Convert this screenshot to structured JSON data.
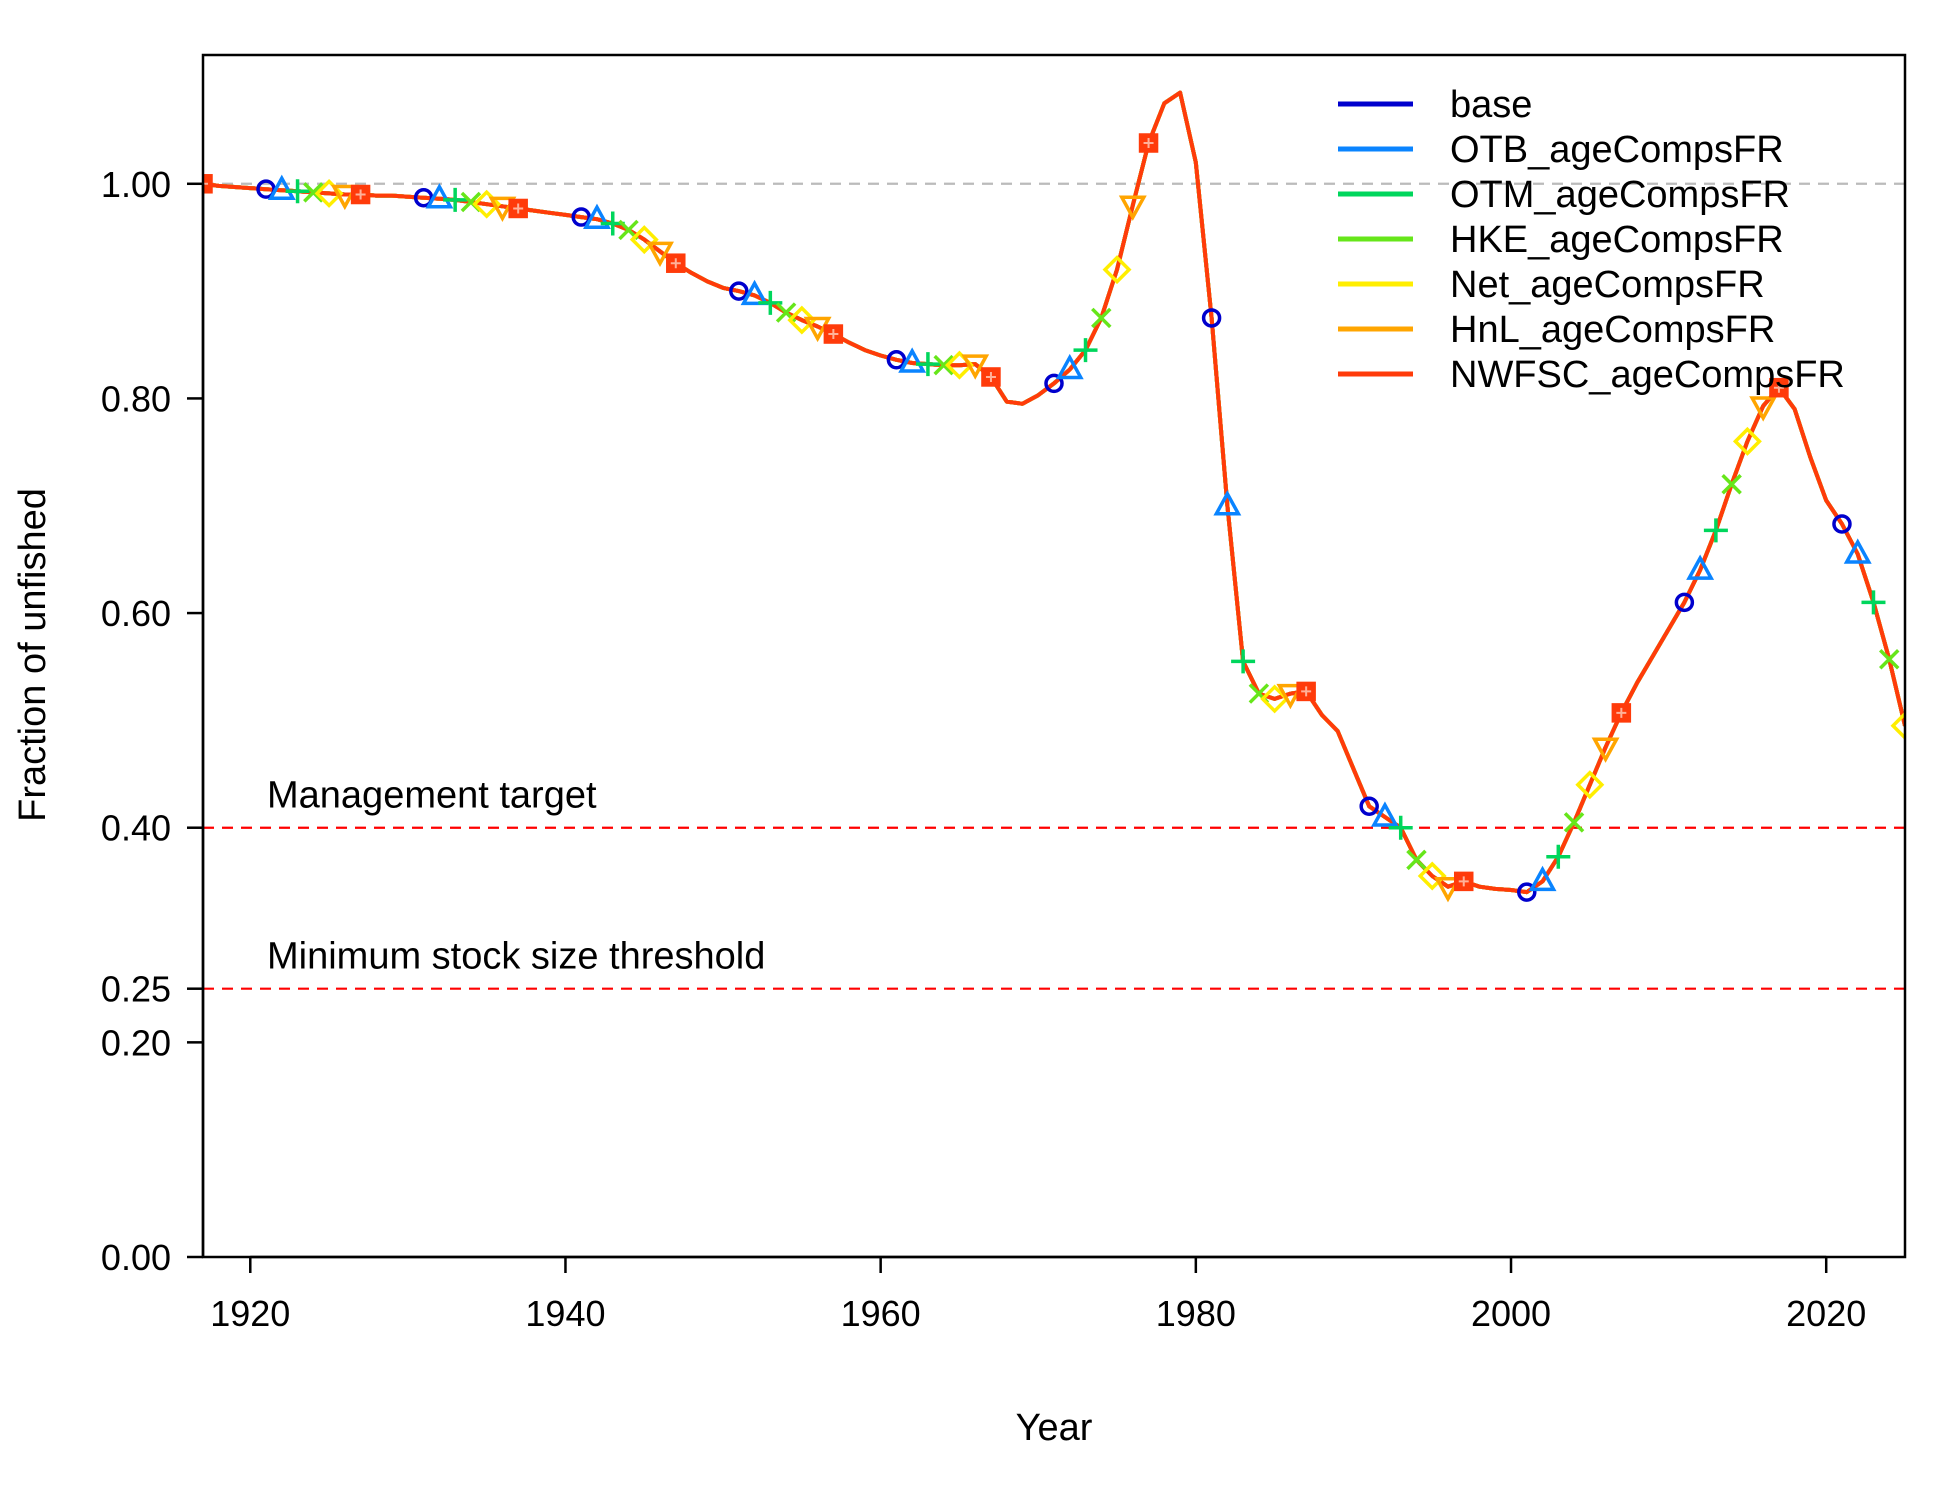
{
  "chart_data": {
    "type": "line",
    "xlabel": "Year",
    "ylabel": "Fraction of unfished",
    "xlim": [
      1917,
      2025
    ],
    "ylim": [
      0,
      1.12
    ],
    "x_ticks": [
      1920,
      1940,
      1960,
      1980,
      2000,
      2020
    ],
    "x_tick_labels": [
      "1920",
      "1940",
      "1960",
      "1980",
      "2000",
      "2020"
    ],
    "y_ticks": [
      0.0,
      0.2,
      0.25,
      0.4,
      0.6,
      0.8,
      1.0
    ],
    "y_tick_labels": [
      "0.00",
      "0.20",
      "0.25",
      "0.40",
      "0.60",
      "0.80",
      "1.00"
    ],
    "grid": false,
    "legend_position": "top-right",
    "reference_lines": [
      {
        "y": 1.0,
        "label": "",
        "color": "#bbbbbb"
      },
      {
        "y": 0.4,
        "label": "Management target",
        "color": "#ff0000"
      },
      {
        "y": 0.25,
        "label": "Minimum stock size threshold",
        "color": "#ff0000"
      }
    ],
    "x": [
      1917,
      1918,
      1919,
      1920,
      1921,
      1922,
      1923,
      1924,
      1925,
      1926,
      1927,
      1928,
      1929,
      1930,
      1931,
      1932,
      1933,
      1934,
      1935,
      1936,
      1937,
      1938,
      1939,
      1940,
      1941,
      1942,
      1943,
      1944,
      1945,
      1946,
      1947,
      1948,
      1949,
      1950,
      1951,
      1952,
      1953,
      1954,
      1955,
      1956,
      1957,
      1958,
      1959,
      1960,
      1961,
      1962,
      1963,
      1964,
      1965,
      1966,
      1967,
      1968,
      1969,
      1970,
      1971,
      1972,
      1973,
      1974,
      1975,
      1976,
      1977,
      1978,
      1979,
      1980,
      1981,
      1982,
      1983,
      1984,
      1985,
      1986,
      1987,
      1988,
      1989,
      1990,
      1991,
      1992,
      1993,
      1994,
      1995,
      1996,
      1997,
      1998,
      1999,
      2000,
      2001,
      2002,
      2003,
      2004,
      2005,
      2006,
      2007,
      2008,
      2009,
      2010,
      2011,
      2012,
      2013,
      2014,
      2015,
      2016,
      2017,
      2018,
      2019,
      2020,
      2021,
      2022,
      2023,
      2024,
      2025
    ],
    "series": [
      {
        "name": "base",
        "color": "#0000cd",
        "marker": "circle",
        "marker_offset": 4,
        "values": [
          1.0,
          0.998,
          0.997,
          0.996,
          0.995,
          0.994,
          0.993,
          0.992,
          0.991,
          0.99,
          0.99,
          0.989,
          0.989,
          0.988,
          0.987,
          0.986,
          0.985,
          0.983,
          0.981,
          0.979,
          0.977,
          0.975,
          0.973,
          0.971,
          0.969,
          0.967,
          0.963,
          0.957,
          0.948,
          0.937,
          0.926,
          0.917,
          0.909,
          0.903,
          0.9,
          0.896,
          0.889,
          0.88,
          0.873,
          0.867,
          0.86,
          0.852,
          0.845,
          0.84,
          0.836,
          0.833,
          0.832,
          0.831,
          0.831,
          0.832,
          0.82,
          0.797,
          0.795,
          0.803,
          0.814,
          0.827,
          0.845,
          0.875,
          0.92,
          0.98,
          1.038,
          1.075,
          1.085,
          1.02,
          0.875,
          0.7,
          0.555,
          0.525,
          0.52,
          0.525,
          0.527,
          0.505,
          0.49,
          0.455,
          0.42,
          0.41,
          0.4,
          0.37,
          0.355,
          0.345,
          0.35,
          0.345,
          0.343,
          0.342,
          0.34,
          0.35,
          0.373,
          0.405,
          0.44,
          0.475,
          0.507,
          0.535,
          0.56,
          0.585,
          0.61,
          0.64,
          0.677,
          0.72,
          0.76,
          0.793,
          0.81,
          0.79,
          0.745,
          0.705,
          0.683,
          0.655,
          0.61,
          0.557,
          0.495
        ]
      },
      {
        "name": "OTB_ageCompsFR",
        "color": "#0a84ff",
        "marker": "triangle-up",
        "marker_offset": 5,
        "values": [
          1.0,
          0.998,
          0.997,
          0.996,
          0.995,
          0.994,
          0.993,
          0.992,
          0.991,
          0.99,
          0.99,
          0.989,
          0.989,
          0.988,
          0.987,
          0.986,
          0.985,
          0.983,
          0.981,
          0.979,
          0.977,
          0.975,
          0.973,
          0.971,
          0.969,
          0.967,
          0.963,
          0.957,
          0.948,
          0.937,
          0.926,
          0.917,
          0.909,
          0.903,
          0.9,
          0.896,
          0.889,
          0.88,
          0.873,
          0.867,
          0.86,
          0.852,
          0.845,
          0.84,
          0.836,
          0.833,
          0.832,
          0.831,
          0.831,
          0.832,
          0.82,
          0.797,
          0.795,
          0.803,
          0.814,
          0.827,
          0.845,
          0.875,
          0.92,
          0.98,
          1.038,
          1.075,
          1.085,
          1.02,
          0.875,
          0.7,
          0.555,
          0.525,
          0.52,
          0.525,
          0.527,
          0.505,
          0.49,
          0.455,
          0.42,
          0.41,
          0.4,
          0.37,
          0.355,
          0.345,
          0.35,
          0.345,
          0.343,
          0.342,
          0.34,
          0.35,
          0.373,
          0.405,
          0.44,
          0.475,
          0.507,
          0.535,
          0.56,
          0.585,
          0.61,
          0.64,
          0.677,
          0.72,
          0.76,
          0.793,
          0.81,
          0.79,
          0.745,
          0.705,
          0.683,
          0.655,
          0.61,
          0.557,
          0.495
        ]
      },
      {
        "name": "OTM_ageCompsFR",
        "color": "#00d65c",
        "marker": "plus",
        "marker_offset": 6,
        "values": [
          1.0,
          0.998,
          0.997,
          0.996,
          0.995,
          0.994,
          0.993,
          0.992,
          0.991,
          0.99,
          0.99,
          0.989,
          0.989,
          0.988,
          0.987,
          0.986,
          0.985,
          0.983,
          0.981,
          0.979,
          0.977,
          0.975,
          0.973,
          0.971,
          0.969,
          0.967,
          0.963,
          0.957,
          0.948,
          0.937,
          0.926,
          0.917,
          0.909,
          0.903,
          0.9,
          0.896,
          0.889,
          0.88,
          0.873,
          0.867,
          0.86,
          0.852,
          0.845,
          0.84,
          0.836,
          0.833,
          0.832,
          0.831,
          0.831,
          0.832,
          0.82,
          0.797,
          0.795,
          0.803,
          0.814,
          0.827,
          0.845,
          0.875,
          0.92,
          0.98,
          1.038,
          1.075,
          1.085,
          1.02,
          0.875,
          0.7,
          0.555,
          0.525,
          0.52,
          0.525,
          0.527,
          0.505,
          0.49,
          0.455,
          0.42,
          0.41,
          0.4,
          0.37,
          0.355,
          0.345,
          0.35,
          0.345,
          0.343,
          0.342,
          0.34,
          0.35,
          0.373,
          0.405,
          0.44,
          0.475,
          0.507,
          0.535,
          0.56,
          0.585,
          0.61,
          0.64,
          0.677,
          0.72,
          0.76,
          0.793,
          0.81,
          0.79,
          0.745,
          0.705,
          0.683,
          0.655,
          0.61,
          0.557,
          0.495
        ]
      },
      {
        "name": "HKE_ageCompsFR",
        "color": "#66e61a",
        "marker": "cross",
        "marker_offset": 7,
        "values": [
          1.0,
          0.998,
          0.997,
          0.996,
          0.995,
          0.994,
          0.993,
          0.992,
          0.991,
          0.99,
          0.99,
          0.989,
          0.989,
          0.988,
          0.987,
          0.986,
          0.985,
          0.983,
          0.981,
          0.979,
          0.977,
          0.975,
          0.973,
          0.971,
          0.969,
          0.967,
          0.963,
          0.957,
          0.948,
          0.937,
          0.926,
          0.917,
          0.909,
          0.903,
          0.9,
          0.896,
          0.889,
          0.88,
          0.873,
          0.867,
          0.86,
          0.852,
          0.845,
          0.84,
          0.836,
          0.833,
          0.832,
          0.831,
          0.831,
          0.832,
          0.82,
          0.797,
          0.795,
          0.803,
          0.814,
          0.827,
          0.845,
          0.875,
          0.92,
          0.98,
          1.038,
          1.075,
          1.085,
          1.02,
          0.875,
          0.7,
          0.555,
          0.525,
          0.52,
          0.525,
          0.527,
          0.505,
          0.49,
          0.455,
          0.42,
          0.41,
          0.4,
          0.37,
          0.355,
          0.345,
          0.35,
          0.345,
          0.343,
          0.342,
          0.34,
          0.35,
          0.373,
          0.405,
          0.44,
          0.475,
          0.507,
          0.535,
          0.56,
          0.585,
          0.61,
          0.64,
          0.677,
          0.72,
          0.76,
          0.793,
          0.81,
          0.79,
          0.745,
          0.705,
          0.683,
          0.655,
          0.61,
          0.557,
          0.495
        ]
      },
      {
        "name": "Net_ageCompsFR",
        "color": "#ffee00",
        "marker": "diamond",
        "marker_offset": 8,
        "values": [
          1.0,
          0.998,
          0.997,
          0.996,
          0.995,
          0.994,
          0.993,
          0.992,
          0.991,
          0.99,
          0.99,
          0.989,
          0.989,
          0.988,
          0.987,
          0.986,
          0.985,
          0.983,
          0.981,
          0.979,
          0.977,
          0.975,
          0.973,
          0.971,
          0.969,
          0.967,
          0.963,
          0.957,
          0.948,
          0.937,
          0.926,
          0.917,
          0.909,
          0.903,
          0.9,
          0.896,
          0.889,
          0.88,
          0.873,
          0.867,
          0.86,
          0.852,
          0.845,
          0.84,
          0.836,
          0.833,
          0.832,
          0.831,
          0.831,
          0.832,
          0.82,
          0.797,
          0.795,
          0.803,
          0.814,
          0.827,
          0.845,
          0.875,
          0.92,
          0.98,
          1.038,
          1.075,
          1.085,
          1.02,
          0.875,
          0.7,
          0.555,
          0.525,
          0.52,
          0.525,
          0.527,
          0.505,
          0.49,
          0.455,
          0.42,
          0.41,
          0.4,
          0.37,
          0.355,
          0.345,
          0.35,
          0.345,
          0.343,
          0.342,
          0.34,
          0.35,
          0.373,
          0.405,
          0.44,
          0.475,
          0.507,
          0.535,
          0.56,
          0.585,
          0.61,
          0.64,
          0.677,
          0.72,
          0.76,
          0.793,
          0.81,
          0.79,
          0.745,
          0.705,
          0.683,
          0.655,
          0.61,
          0.557,
          0.495
        ]
      },
      {
        "name": "HnL_ageCompsFR",
        "color": "#ffa500",
        "marker": "triangle-down",
        "marker_offset": 9,
        "values": [
          1.0,
          0.998,
          0.997,
          0.996,
          0.995,
          0.994,
          0.993,
          0.992,
          0.991,
          0.99,
          0.99,
          0.989,
          0.989,
          0.988,
          0.987,
          0.986,
          0.985,
          0.983,
          0.981,
          0.979,
          0.977,
          0.975,
          0.973,
          0.971,
          0.969,
          0.967,
          0.963,
          0.957,
          0.948,
          0.937,
          0.926,
          0.917,
          0.909,
          0.903,
          0.9,
          0.896,
          0.889,
          0.88,
          0.873,
          0.867,
          0.86,
          0.852,
          0.845,
          0.84,
          0.836,
          0.833,
          0.832,
          0.831,
          0.831,
          0.832,
          0.82,
          0.797,
          0.795,
          0.803,
          0.814,
          0.827,
          0.845,
          0.875,
          0.92,
          0.98,
          1.038,
          1.075,
          1.085,
          1.02,
          0.875,
          0.7,
          0.555,
          0.525,
          0.52,
          0.525,
          0.527,
          0.505,
          0.49,
          0.455,
          0.42,
          0.41,
          0.4,
          0.37,
          0.355,
          0.345,
          0.35,
          0.345,
          0.343,
          0.342,
          0.34,
          0.35,
          0.373,
          0.405,
          0.44,
          0.475,
          0.507,
          0.535,
          0.56,
          0.585,
          0.61,
          0.64,
          0.677,
          0.72,
          0.76,
          0.793,
          0.81,
          0.79,
          0.745,
          0.705,
          0.683,
          0.655,
          0.61,
          0.557,
          0.495
        ]
      },
      {
        "name": "NWFSC_ageCompsFR",
        "color": "#ff3b0a",
        "marker": "square-cross",
        "marker_offset": 10,
        "values": [
          1.0,
          0.998,
          0.997,
          0.996,
          0.995,
          0.994,
          0.993,
          0.992,
          0.991,
          0.99,
          0.99,
          0.989,
          0.989,
          0.988,
          0.987,
          0.986,
          0.985,
          0.983,
          0.981,
          0.979,
          0.977,
          0.975,
          0.973,
          0.971,
          0.969,
          0.967,
          0.963,
          0.957,
          0.948,
          0.937,
          0.926,
          0.917,
          0.909,
          0.903,
          0.9,
          0.896,
          0.889,
          0.88,
          0.873,
          0.867,
          0.86,
          0.852,
          0.845,
          0.84,
          0.836,
          0.833,
          0.832,
          0.831,
          0.831,
          0.832,
          0.82,
          0.797,
          0.795,
          0.803,
          0.814,
          0.827,
          0.845,
          0.875,
          0.92,
          0.98,
          1.038,
          1.075,
          1.085,
          1.02,
          0.875,
          0.7,
          0.555,
          0.525,
          0.52,
          0.525,
          0.527,
          0.505,
          0.49,
          0.455,
          0.42,
          0.41,
          0.4,
          0.37,
          0.355,
          0.345,
          0.35,
          0.345,
          0.343,
          0.342,
          0.34,
          0.35,
          0.373,
          0.405,
          0.44,
          0.475,
          0.507,
          0.535,
          0.56,
          0.585,
          0.61,
          0.64,
          0.677,
          0.72,
          0.76,
          0.793,
          0.81,
          0.79,
          0.745,
          0.705,
          0.683,
          0.655,
          0.61,
          0.557,
          0.495
        ]
      }
    ]
  }
}
